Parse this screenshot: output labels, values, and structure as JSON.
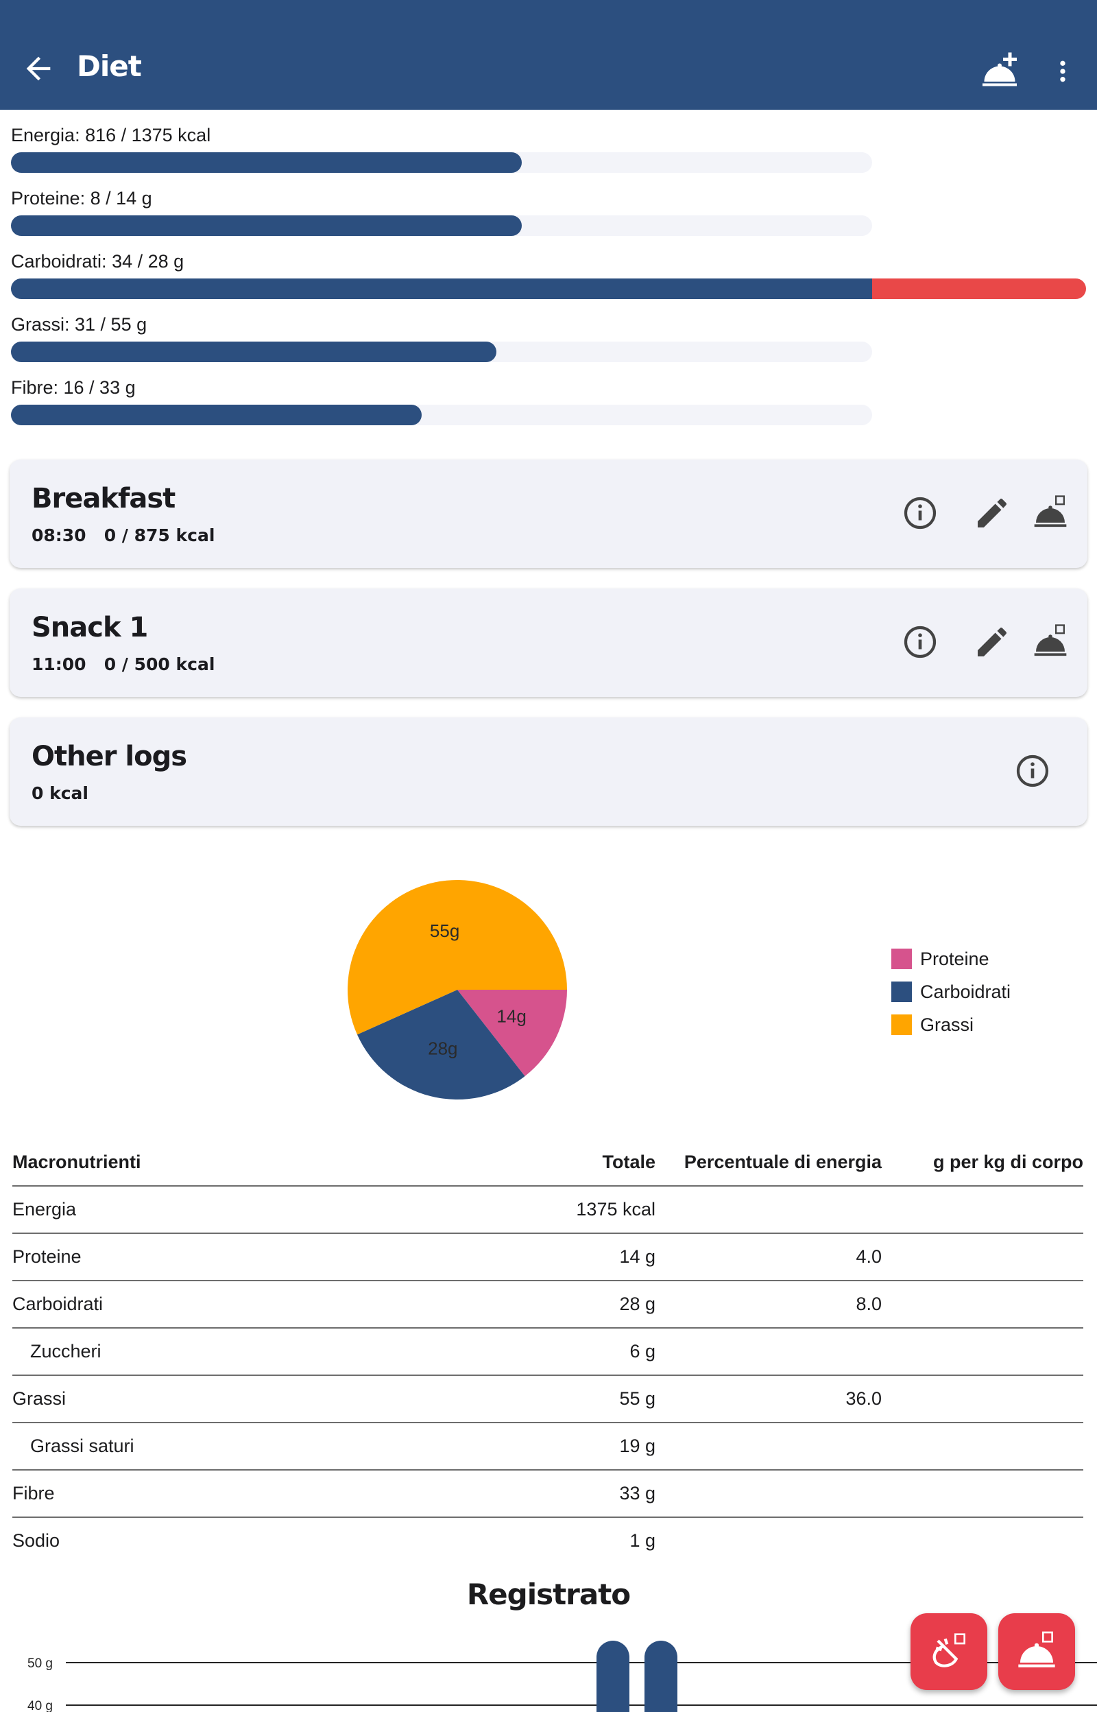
{
  "app_bar": {
    "title": "Diet",
    "back_icon": "arrow-left-icon",
    "actions": [
      "add-meal-icon",
      "more-vert-icon"
    ]
  },
  "goals": [
    {
      "label": "Energia: 816 / 1375 kcal",
      "fraction": 0.593
    },
    {
      "label": "Proteine: 8 / 14 g",
      "fraction": 0.593
    },
    {
      "label": "Carboidrati: 34 / 28 g",
      "fraction": 1.214
    },
    {
      "label": "Grassi: 31 / 55 g",
      "fraction": 0.564
    },
    {
      "label": "Fibre: 16 / 33 g",
      "fraction": 0.477
    }
  ],
  "meals": [
    {
      "name": "Breakfast",
      "time": "08:30",
      "kcal": "0 / 875 kcal"
    },
    {
      "name": "Snack 1",
      "time": "11:00",
      "kcal": "0 / 500 kcal"
    }
  ],
  "other_logs": {
    "name": "Other logs",
    "kcal": "0 kcal"
  },
  "chart_data": [
    {
      "type": "pie",
      "slices": [
        {
          "name": "Proteine",
          "value": 14,
          "label": "14g",
          "color": "#d6538d"
        },
        {
          "name": "Carboidrati",
          "value": 28,
          "label": "28g",
          "color": "#2c4f7f"
        },
        {
          "name": "Grassi",
          "value": 55,
          "label": "55g",
          "color": "#ffa500"
        }
      ],
      "legend": "right"
    },
    {
      "type": "bar",
      "title": "Registrato",
      "y_ticks": [
        "50 g",
        "40 g"
      ],
      "grid": true
    }
  ],
  "table": {
    "headers": [
      "Macronutrienti",
      "Totale",
      "Percentuale di energia",
      "g per kg di corpo"
    ],
    "rows": [
      {
        "name": "Energia",
        "total": "1375 kcal",
        "pct": "",
        "gkg": "",
        "indent": false
      },
      {
        "name": "Proteine",
        "total": "14 g",
        "pct": "4.0",
        "gkg": "",
        "indent": false
      },
      {
        "name": "Carboidrati",
        "total": "28 g",
        "pct": "8.0",
        "gkg": "",
        "indent": false
      },
      {
        "name": "Zuccheri",
        "total": "6 g",
        "pct": "",
        "gkg": "",
        "indent": true
      },
      {
        "name": "Grassi",
        "total": "55 g",
        "pct": "36.0",
        "gkg": "",
        "indent": false
      },
      {
        "name": "Grassi saturi",
        "total": "19 g",
        "pct": "",
        "gkg": "",
        "indent": true
      },
      {
        "name": "Fibre",
        "total": "33 g",
        "pct": "",
        "gkg": "",
        "indent": false
      },
      {
        "name": "Sodio",
        "total": "1 g",
        "pct": "",
        "gkg": "",
        "indent": false
      }
    ]
  },
  "fabs": [
    "log-ingredient-icon",
    "log-meal-icon"
  ],
  "colors": {
    "primary": "#2c4f7f",
    "over": "#e94848",
    "fab": "#e83d4b",
    "card": "#f1f2f8"
  }
}
